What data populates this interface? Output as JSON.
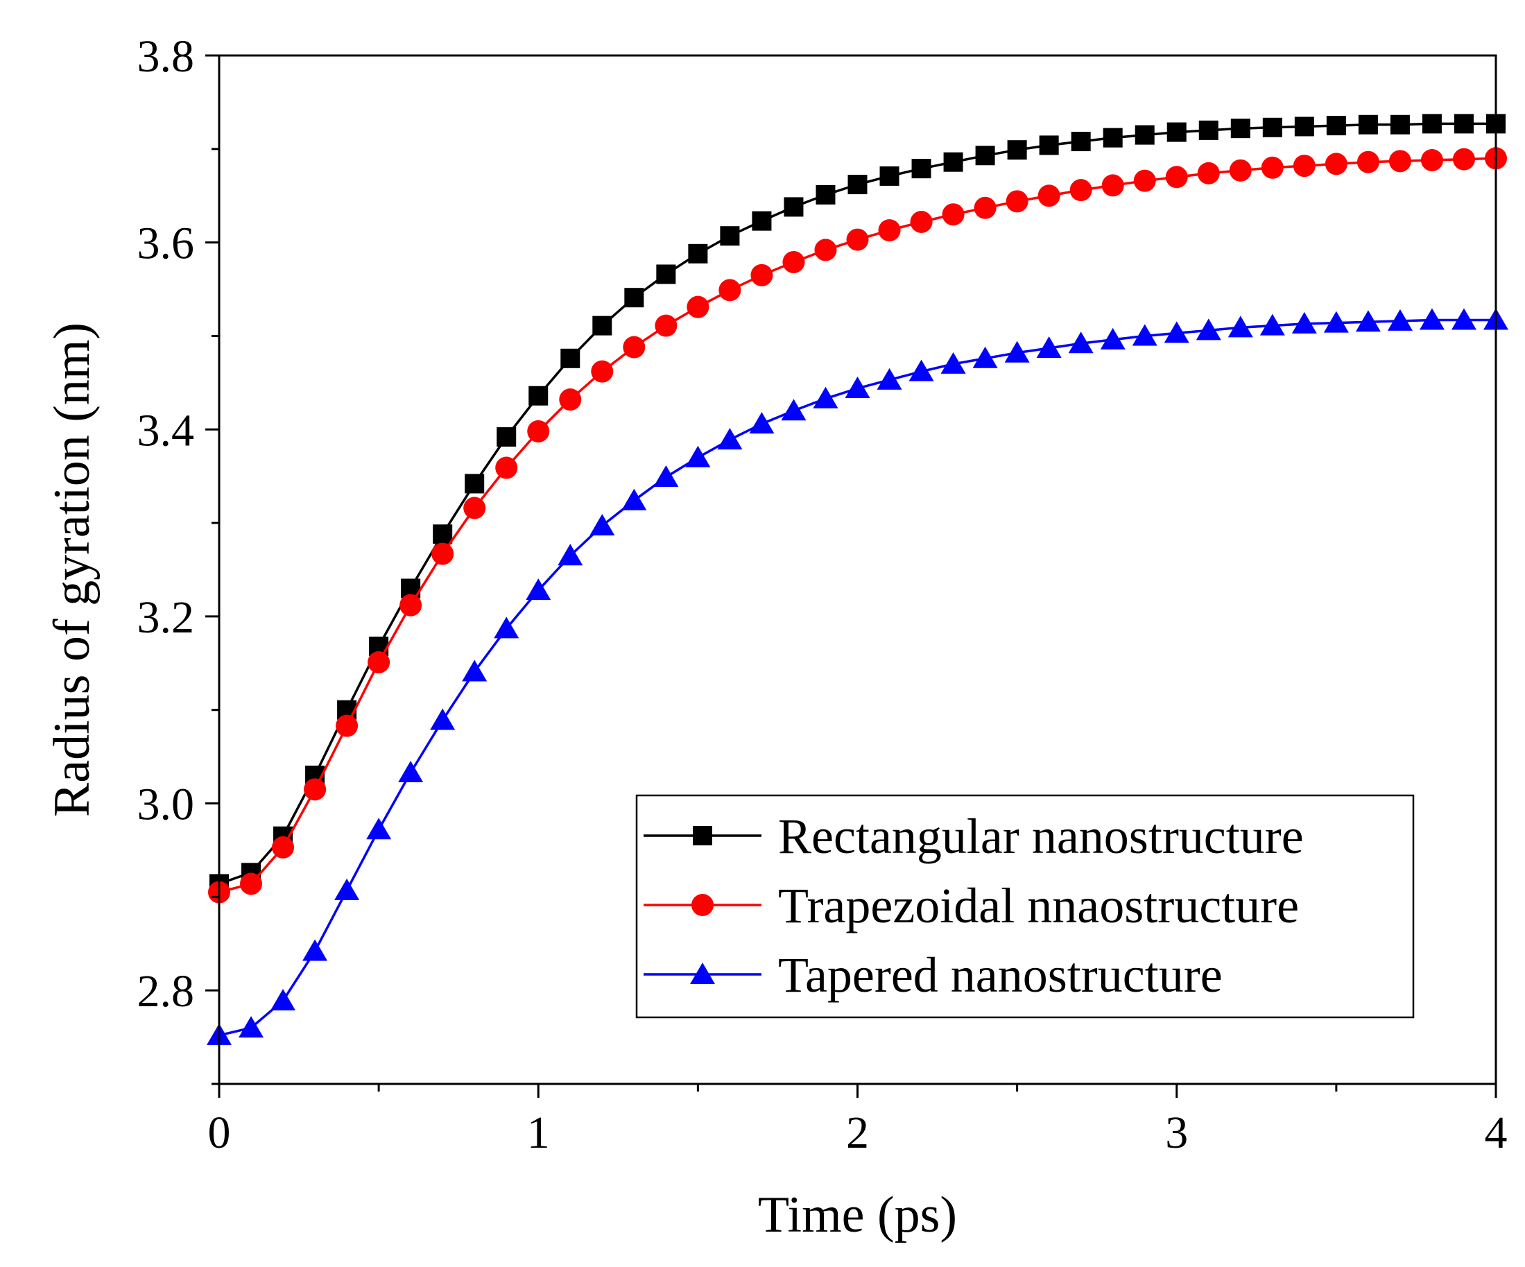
{
  "chart_data": {
    "type": "line",
    "xlabel": "Time (ps)",
    "ylabel": "Radius of gyration (nm)",
    "xlim": [
      0,
      4
    ],
    "ylim": [
      2.7,
      3.8
    ],
    "x_ticks": [
      "0",
      "1",
      "2",
      "3",
      "4"
    ],
    "x_tick_values": [
      0,
      1,
      2,
      3,
      4
    ],
    "y_ticks": [
      "2.8",
      "3.0",
      "3.2",
      "3.4",
      "3.6",
      "3.8"
    ],
    "y_tick_values": [
      2.8,
      3.0,
      3.2,
      3.4,
      3.6,
      3.8
    ],
    "grid": false,
    "legend_position": "bottom-right",
    "x": [
      0,
      0.1,
      0.2,
      0.3,
      0.4,
      0.5,
      0.6,
      0.7,
      0.8,
      0.9,
      1.0,
      1.1,
      1.2,
      1.3,
      1.4,
      1.5,
      1.6,
      1.7,
      1.8,
      1.9,
      2.0,
      2.1,
      2.2,
      2.3,
      2.4,
      2.5,
      2.6,
      2.7,
      2.8,
      2.9,
      3.0,
      3.1,
      3.2,
      3.3,
      3.4,
      3.5,
      3.6,
      3.7,
      3.8,
      3.9,
      4.0
    ],
    "series": [
      {
        "name": "Rectangular nanostructure",
        "color": "#000000",
        "marker": "square",
        "values": [
          2.914,
          2.926,
          2.965,
          3.03,
          3.1,
          3.168,
          3.23,
          3.288,
          3.342,
          3.392,
          3.436,
          3.476,
          3.511,
          3.541,
          3.566,
          3.588,
          3.607,
          3.623,
          3.638,
          3.651,
          3.662,
          3.671,
          3.679,
          3.686,
          3.693,
          3.699,
          3.704,
          3.708,
          3.712,
          3.715,
          3.718,
          3.72,
          3.722,
          3.723,
          3.724,
          3.725,
          3.726,
          3.726,
          3.727,
          3.727,
          3.727
        ]
      },
      {
        "name": "Trapezoidal nnaostructure",
        "color": "#ff0000",
        "marker": "circle",
        "values": [
          2.905,
          2.914,
          2.953,
          3.015,
          3.083,
          3.151,
          3.212,
          3.267,
          3.316,
          3.359,
          3.398,
          3.432,
          3.462,
          3.488,
          3.511,
          3.531,
          3.549,
          3.565,
          3.579,
          3.592,
          3.603,
          3.613,
          3.622,
          3.63,
          3.637,
          3.644,
          3.65,
          3.656,
          3.661,
          3.666,
          3.67,
          3.674,
          3.677,
          3.68,
          3.682,
          3.684,
          3.686,
          3.687,
          3.688,
          3.689,
          3.69
        ]
      },
      {
        "name": "Tapered nanostructure",
        "color": "#0000ff",
        "marker": "triangle",
        "values": [
          2.752,
          2.76,
          2.789,
          2.842,
          2.907,
          2.972,
          3.033,
          3.089,
          3.141,
          3.187,
          3.228,
          3.265,
          3.297,
          3.324,
          3.349,
          3.37,
          3.389,
          3.406,
          3.42,
          3.433,
          3.444,
          3.453,
          3.462,
          3.47,
          3.476,
          3.482,
          3.487,
          3.492,
          3.496,
          3.5,
          3.503,
          3.506,
          3.509,
          3.511,
          3.513,
          3.514,
          3.515,
          3.516,
          3.517,
          3.517,
          3.517
        ]
      }
    ]
  }
}
